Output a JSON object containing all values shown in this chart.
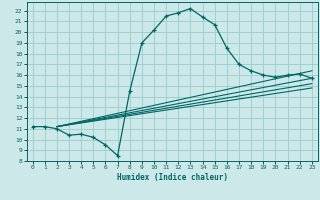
{
  "title": "",
  "xlabel": "Humidex (Indice chaleur)",
  "ylabel": "",
  "bg_color": "#cce8e8",
  "line_color": "#006666",
  "grid_color": "#99cccc",
  "xlim": [
    -0.5,
    23.5
  ],
  "ylim": [
    8,
    22.8
  ],
  "xticks": [
    0,
    1,
    2,
    3,
    4,
    5,
    6,
    7,
    8,
    9,
    10,
    11,
    12,
    13,
    14,
    15,
    16,
    17,
    18,
    19,
    20,
    21,
    22,
    23
  ],
  "yticks": [
    8,
    9,
    10,
    11,
    12,
    13,
    14,
    15,
    16,
    17,
    18,
    19,
    20,
    21,
    22
  ],
  "main_x": [
    0,
    1,
    2,
    3,
    4,
    5,
    6,
    7,
    8,
    9,
    10,
    11,
    12,
    13,
    14,
    15,
    16,
    17,
    18,
    19,
    20,
    21,
    22,
    23
  ],
  "main_y": [
    11.2,
    11.2,
    11.0,
    10.4,
    10.5,
    10.2,
    9.5,
    8.5,
    14.5,
    19.0,
    20.2,
    21.5,
    21.8,
    22.2,
    21.4,
    20.7,
    18.5,
    17.0,
    16.4,
    16.0,
    15.8,
    16.0,
    16.1,
    15.7
  ],
  "line2_x": [
    2,
    23
  ],
  "line2_y": [
    11.2,
    16.4
  ],
  "line3_x": [
    2,
    23
  ],
  "line3_y": [
    11.2,
    15.7
  ],
  "line4_x": [
    2,
    23
  ],
  "line4_y": [
    11.2,
    15.2
  ],
  "line5_x": [
    2,
    23
  ],
  "line5_y": [
    11.2,
    14.8
  ]
}
